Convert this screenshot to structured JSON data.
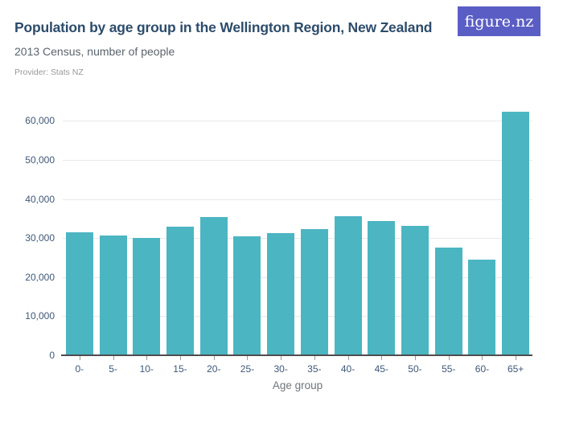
{
  "header": {
    "title": "Population by age group in the Wellington Region, New Zealand",
    "subtitle": "2013 Census, number of people",
    "provider_label": "Provider: Stats NZ",
    "logo_text": "figure.nz"
  },
  "colors": {
    "bar": "#4cb5c2",
    "title_text": "#2d4c6b",
    "subtitle_text": "#5a646c",
    "provider_text": "#96999d",
    "axis_tick_text": "#3f5877",
    "gridline": "#e9e9e9",
    "axis_line": "#4d4d4d",
    "logo_background": "#5a5ec4",
    "logo_text": "#ffffff"
  },
  "chart_data": {
    "type": "bar",
    "title": "Population by age group in the Wellington Region, New Zealand",
    "subtitle": "2013 Census, number of people",
    "categories": [
      "0-",
      "5-",
      "10-",
      "15-",
      "20-",
      "25-",
      "30-",
      "35-",
      "40-",
      "45-",
      "50-",
      "55-",
      "60-",
      "65+"
    ],
    "values": [
      31400,
      30700,
      30100,
      33000,
      35500,
      30500,
      31200,
      32300,
      35600,
      34400,
      33100,
      27600,
      24500,
      62400
    ],
    "xlabel": "Age group",
    "ylabel": "",
    "ylim": [
      0,
      65000
    ],
    "yticks": [
      0,
      10000,
      20000,
      30000,
      40000,
      50000,
      60000
    ],
    "grid": true,
    "legend": false
  }
}
